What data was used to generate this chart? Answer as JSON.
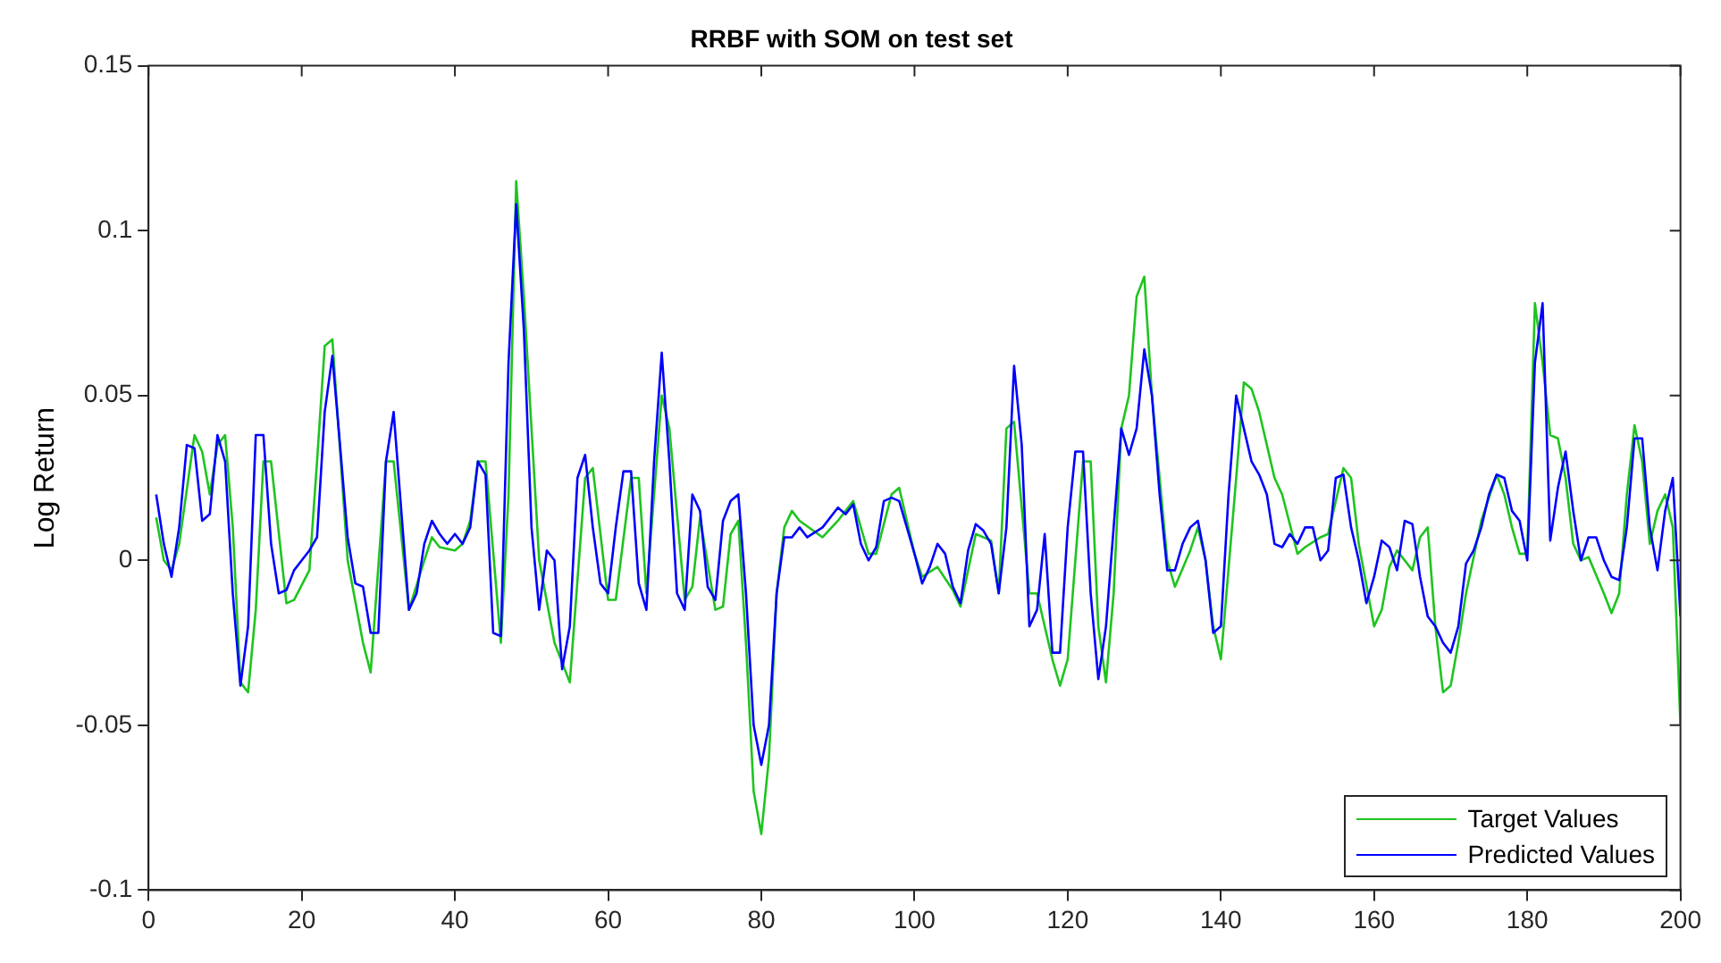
{
  "chart_data": {
    "type": "line",
    "title": "RRBF with SOM on test set",
    "ylabel": "Log Return",
    "xlim": [
      0,
      200
    ],
    "xticks": [
      0,
      20,
      40,
      60,
      80,
      100,
      120,
      140,
      160,
      180,
      200
    ],
    "ylim": [
      -0.1,
      0.15
    ],
    "yticks": [
      -0.1,
      -0.05,
      0,
      0.05,
      0.1,
      0.15
    ],
    "legend": "bottom right",
    "grid": false,
    "marker": "none",
    "line_style": "solid",
    "series": [
      {
        "name": "Target Values",
        "color": "#1fc41f",
        "x": [
          1,
          2,
          3,
          4,
          6,
          7,
          8,
          9,
          10,
          11,
          12,
          13,
          14,
          15,
          16,
          18,
          19,
          21,
          22,
          23,
          24,
          26,
          28,
          29,
          31,
          32,
          34,
          36,
          37,
          38,
          40,
          41,
          42,
          43,
          44,
          46,
          47,
          48,
          49,
          51,
          53,
          55,
          57,
          58,
          60,
          61,
          63,
          64,
          65,
          67,
          68,
          70,
          71,
          72,
          74,
          75,
          76,
          77,
          78,
          79,
          80,
          81,
          82,
          83,
          84,
          85,
          88,
          90,
          92,
          94,
          95,
          97,
          98,
          100,
          101,
          103,
          105,
          106,
          108,
          110,
          111,
          112,
          113,
          115,
          116,
          118,
          119,
          120,
          122,
          123,
          124,
          125,
          126,
          127,
          128,
          129,
          130,
          131,
          133,
          134,
          136,
          137,
          138,
          139,
          140,
          142,
          143,
          144,
          145,
          147,
          148,
          150,
          151,
          153,
          154,
          156,
          157,
          158,
          160,
          161,
          162,
          163,
          165,
          166,
          167,
          168,
          169,
          170,
          171,
          172,
          174,
          176,
          177,
          178,
          179,
          180,
          181,
          182,
          183,
          184,
          185,
          186,
          187,
          188,
          190,
          191,
          192,
          193,
          194,
          195,
          196,
          197,
          198,
          199,
          200
        ],
        "values": [
          0.013,
          0,
          -0.003,
          0.005,
          0.038,
          0.033,
          0.02,
          0.035,
          0.038,
          0.01,
          -0.037,
          -0.04,
          -0.015,
          0.03,
          0.03,
          -0.013,
          -0.012,
          -0.003,
          0.03,
          0.065,
          0.067,
          0,
          -0.025,
          -0.034,
          0.03,
          0.03,
          -0.015,
          0,
          0.007,
          0.004,
          0.003,
          0.005,
          0.012,
          0.03,
          0.03,
          -0.025,
          0.02,
          0.115,
          0.08,
          0,
          -0.025,
          -0.037,
          0.025,
          0.028,
          -0.012,
          -0.012,
          0.025,
          0.025,
          -0.01,
          0.05,
          0.04,
          -0.012,
          -0.008,
          0.013,
          -0.015,
          -0.014,
          0.008,
          0.012,
          -0.025,
          -0.07,
          -0.083,
          -0.06,
          -0.01,
          0.01,
          0.015,
          0.012,
          0.007,
          0.012,
          0.018,
          0.002,
          0.002,
          0.02,
          0.022,
          0.002,
          -0.005,
          -0.002,
          -0.009,
          -0.014,
          0.008,
          0.006,
          -0.01,
          0.04,
          0.042,
          -0.01,
          -0.01,
          -0.03,
          -0.038,
          -0.03,
          0.03,
          0.03,
          -0.02,
          -0.037,
          -0.01,
          0.04,
          0.05,
          0.08,
          0.086,
          0.05,
          0,
          -0.008,
          0.003,
          0.01,
          0,
          -0.02,
          -0.03,
          0.025,
          0.054,
          0.052,
          0.045,
          0.025,
          0.02,
          0.002,
          0.004,
          0.007,
          0.008,
          0.028,
          0.025,
          0.005,
          -0.02,
          -0.015,
          -0.002,
          0.003,
          -0.003,
          0.007,
          0.01,
          -0.02,
          -0.04,
          -0.038,
          -0.025,
          -0.01,
          0.012,
          0.026,
          0.02,
          0.01,
          0.002,
          0.002,
          0.078,
          0.06,
          0.038,
          0.037,
          0.025,
          0.005,
          0,
          0.001,
          -0.01,
          -0.016,
          -0.01,
          0.02,
          0.041,
          0.03,
          0.005,
          0.015,
          0.02,
          0.01,
          -0.05
        ]
      },
      {
        "name": "Predicted Values",
        "color": "#0000ff",
        "x": [
          1,
          2,
          3,
          4,
          5,
          6,
          7,
          8,
          9,
          10,
          11,
          12,
          13,
          14,
          15,
          16,
          17,
          18,
          19,
          20,
          21,
          22,
          23,
          24,
          25,
          26,
          27,
          28,
          29,
          30,
          31,
          32,
          33,
          34,
          35,
          36,
          37,
          38,
          39,
          40,
          41,
          42,
          43,
          44,
          45,
          46,
          47,
          48,
          49,
          50,
          51,
          52,
          53,
          54,
          55,
          56,
          57,
          58,
          59,
          60,
          61,
          62,
          63,
          64,
          65,
          66,
          67,
          68,
          69,
          70,
          71,
          72,
          73,
          74,
          75,
          76,
          77,
          78,
          79,
          80,
          81,
          82,
          83,
          84,
          85,
          86,
          88,
          90,
          91,
          92,
          93,
          94,
          95,
          96,
          97,
          98,
          99,
          100,
          101,
          102,
          103,
          104,
          105,
          106,
          107,
          108,
          109,
          110,
          111,
          112,
          113,
          114,
          115,
          116,
          117,
          118,
          119,
          120,
          121,
          122,
          123,
          124,
          125,
          126,
          127,
          128,
          129,
          130,
          131,
          132,
          133,
          134,
          135,
          136,
          137,
          138,
          139,
          140,
          141,
          142,
          143,
          144,
          145,
          146,
          147,
          148,
          149,
          150,
          151,
          152,
          153,
          154,
          155,
          156,
          157,
          158,
          159,
          160,
          161,
          162,
          163,
          164,
          165,
          166,
          167,
          168,
          169,
          170,
          171,
          172,
          173,
          174,
          175,
          176,
          177,
          178,
          179,
          180,
          181,
          182,
          183,
          184,
          185,
          186,
          187,
          188,
          189,
          190,
          191,
          192,
          193,
          194,
          195,
          196,
          197,
          198,
          199,
          200
        ],
        "values": [
          0.02,
          0.005,
          -0.005,
          0.01,
          0.035,
          0.034,
          0.012,
          0.014,
          0.038,
          0.03,
          -0.01,
          -0.038,
          -0.02,
          0.038,
          0.038,
          0.005,
          -0.01,
          -0.009,
          -0.003,
          0,
          0.003,
          0.007,
          0.045,
          0.062,
          0.035,
          0.007,
          -0.007,
          -0.008,
          -0.022,
          -0.022,
          0.03,
          0.045,
          0.015,
          -0.015,
          -0.01,
          0.005,
          0.012,
          0.008,
          0.005,
          0.008,
          0.005,
          0.01,
          0.03,
          0.026,
          -0.022,
          -0.023,
          0.06,
          0.108,
          0.07,
          0.01,
          -0.015,
          0.003,
          0,
          -0.033,
          -0.02,
          0.025,
          0.032,
          0.01,
          -0.007,
          -0.01,
          0.01,
          0.027,
          0.027,
          -0.007,
          -0.015,
          0.03,
          0.063,
          0.03,
          -0.01,
          -0.015,
          0.02,
          0.015,
          -0.008,
          -0.012,
          0.012,
          0.018,
          0.02,
          -0.01,
          -0.05,
          -0.062,
          -0.05,
          -0.01,
          0.007,
          0.007,
          0.01,
          0.007,
          0.01,
          0.016,
          0.014,
          0.017,
          0.005,
          0,
          0.004,
          0.018,
          0.019,
          0.018,
          0.01,
          0.002,
          -0.007,
          -0.002,
          0.005,
          0.002,
          -0.008,
          -0.013,
          0.003,
          0.011,
          0.009,
          0.005,
          -0.01,
          0.01,
          0.059,
          0.035,
          -0.02,
          -0.015,
          0.008,
          -0.028,
          -0.028,
          0.01,
          0.033,
          0.033,
          -0.01,
          -0.036,
          -0.02,
          0.01,
          0.04,
          0.032,
          0.04,
          0.064,
          0.05,
          0.02,
          -0.003,
          -0.003,
          0.005,
          0.01,
          0.012,
          0,
          -0.022,
          -0.02,
          0.02,
          0.05,
          0.04,
          0.03,
          0.026,
          0.02,
          0.005,
          0.004,
          0.008,
          0.005,
          0.01,
          0.01,
          0,
          0.003,
          0.025,
          0.026,
          0.01,
          0,
          -0.013,
          -0.005,
          0.006,
          0.004,
          -0.003,
          0.012,
          0.011,
          -0.005,
          -0.017,
          -0.02,
          -0.025,
          -0.028,
          -0.02,
          -0.001,
          0.003,
          0.01,
          0.02,
          0.026,
          0.025,
          0.015,
          0.012,
          0,
          0.06,
          0.078,
          0.006,
          0.022,
          0.033,
          0.015,
          0,
          0.007,
          0.007,
          0,
          -0.005,
          -0.006,
          0.01,
          0.037,
          0.037,
          0.01,
          -0.003,
          0.015,
          0.025,
          -0.017
        ]
      }
    ]
  }
}
